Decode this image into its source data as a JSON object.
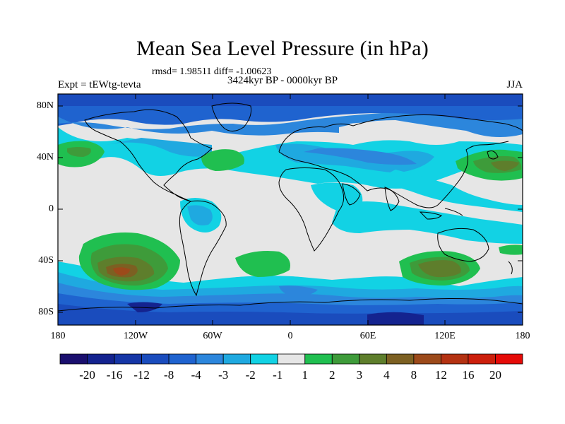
{
  "title": "Mean Sea Level Pressure (in hPa)",
  "stats": "rmsd= 1.98511 diff= -1.00623",
  "experiment": "Expt = tEWtg-tevta",
  "period": "3424kyr BP - 0000kyr BP",
  "season": "JJA",
  "lat_labels": [
    "80N",
    "40N",
    "0",
    "40S",
    "80S"
  ],
  "lon_labels": [
    "180",
    "120W",
    "60W",
    "0",
    "60E",
    "120E",
    "180"
  ],
  "colorbar": {
    "labels": [
      "-20",
      "-16",
      "-12",
      "-8",
      "-4",
      "-3",
      "-2",
      "-1",
      "1",
      "2",
      "3",
      "4",
      "8",
      "12",
      "16",
      "20"
    ],
    "colors": [
      "#1a0f6e",
      "#14238f",
      "#1636a6",
      "#1a4cbd",
      "#1f63cf",
      "#2c86dc",
      "#1fa9e0",
      "#12d2e4",
      "#e6e6e6",
      "#20bf50",
      "#3e9b3a",
      "#5e7e2c",
      "#7c6022",
      "#9c4a1a",
      "#b43212",
      "#cc1f0c",
      "#e50b08"
    ]
  },
  "colors": {
    "neutral": "#e6e6e6",
    "land_outline": "#000000"
  }
}
